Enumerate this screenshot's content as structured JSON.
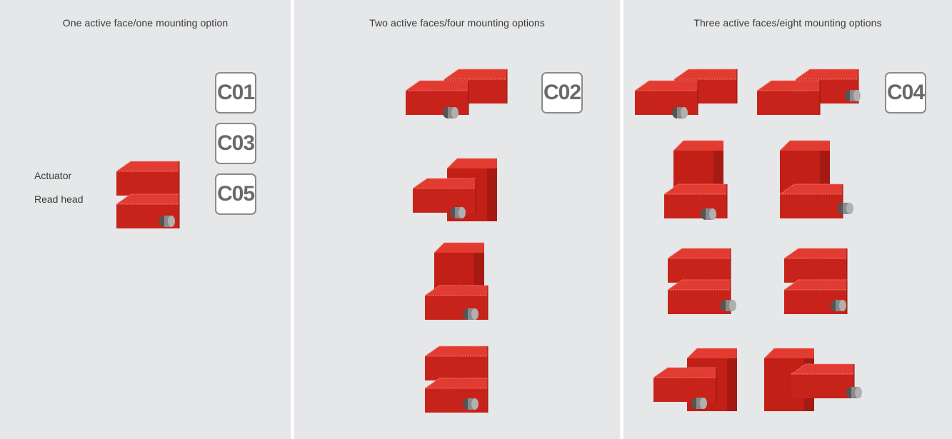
{
  "panels": [
    {
      "title": "One active face/one mounting option",
      "codes": [
        "C01",
        "C03",
        "C05"
      ]
    },
    {
      "title": "Two active faces/four mounting options",
      "codes": [
        "C02"
      ]
    },
    {
      "title": "Three active faces/eight mounting options",
      "codes": [
        "C04"
      ]
    }
  ],
  "labels": {
    "actuator": "Actuator",
    "read_head": "Read head"
  },
  "colors": {
    "panel_bg": "#e6e7e8",
    "block_front": "#c8231b",
    "block_top": "#e23b31",
    "block_side": "#a51a13",
    "cable": "#666666",
    "code_border": "#8a8a8a"
  }
}
